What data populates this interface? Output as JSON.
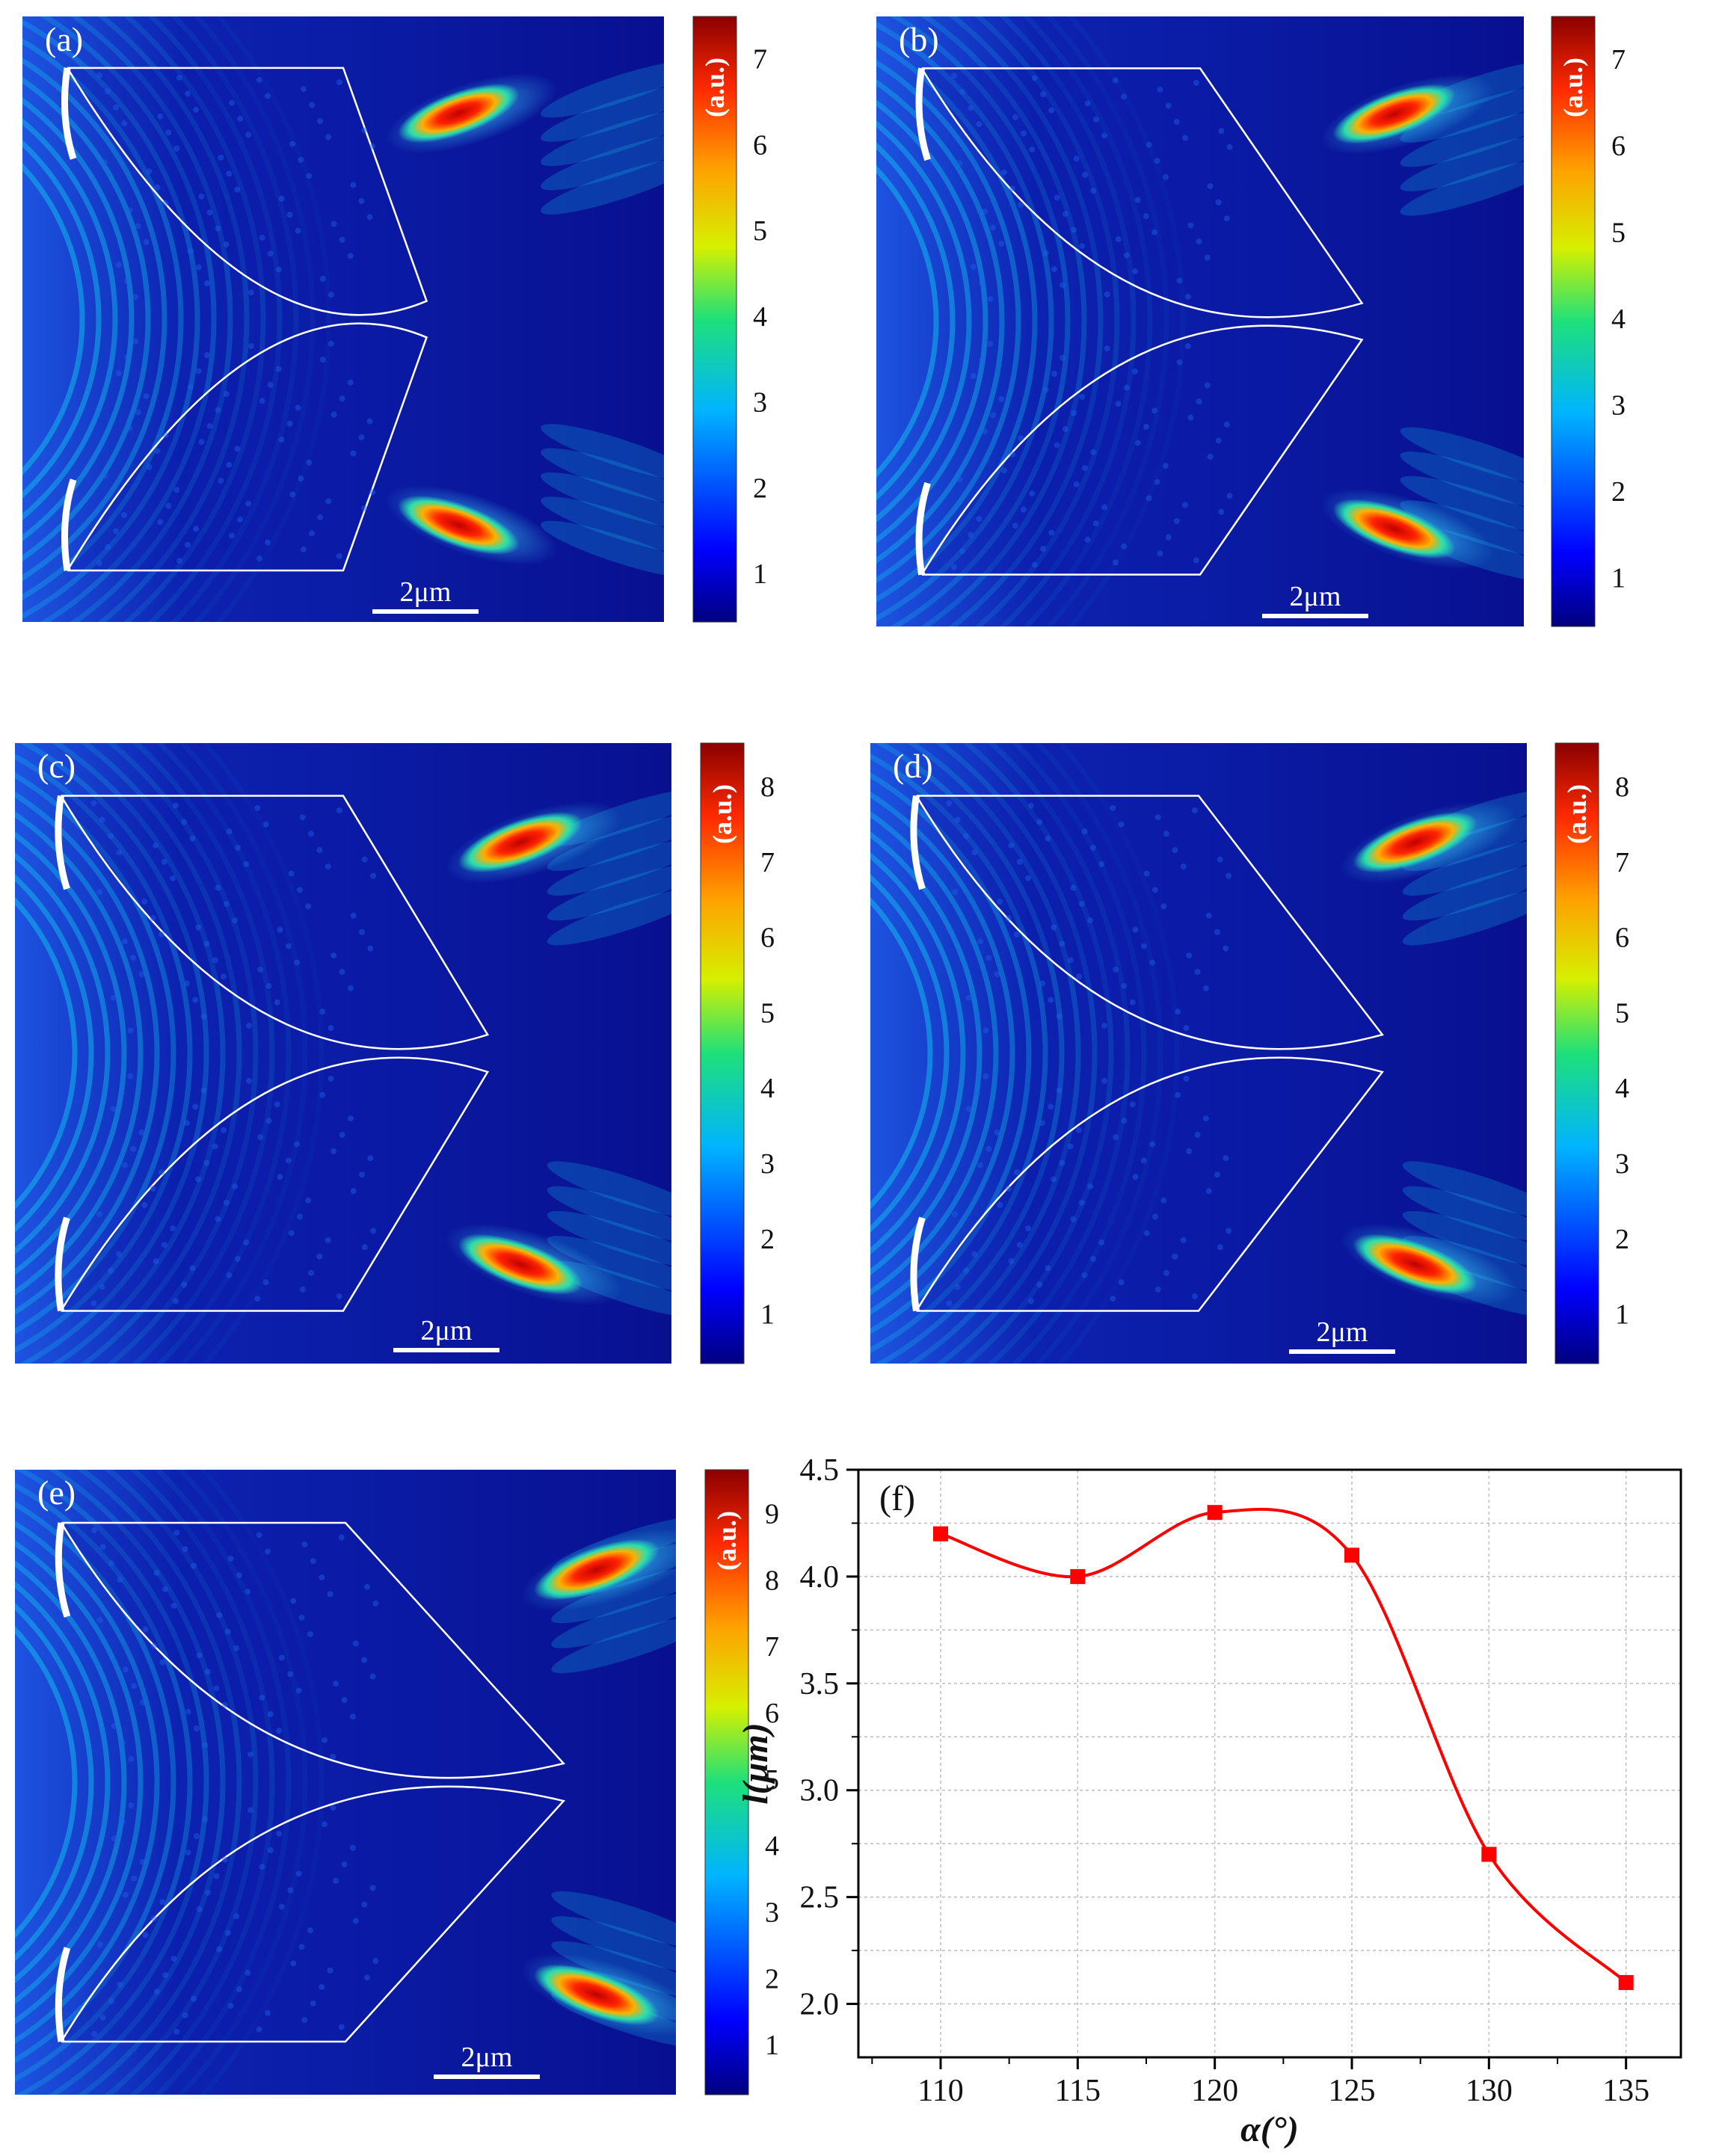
{
  "panels": [
    {
      "letter": "(a)",
      "scale_label": "2μm",
      "colorbar_unit": "(a.u.)",
      "colorbar_ticks": [
        "1",
        "2",
        "3",
        "4",
        "5",
        "6",
        "7"
      ]
    },
    {
      "letter": "(b)",
      "scale_label": "2μm",
      "colorbar_unit": "(a.u.)",
      "colorbar_ticks": [
        "1",
        "2",
        "3",
        "4",
        "5",
        "6",
        "7"
      ]
    },
    {
      "letter": "(c)",
      "scale_label": "2μm",
      "colorbar_unit": "(a.u.)",
      "colorbar_ticks": [
        "1",
        "2",
        "3",
        "4",
        "5",
        "6",
        "7",
        "8"
      ]
    },
    {
      "letter": "(d)",
      "scale_label": "2μm",
      "colorbar_unit": "(a.u.)",
      "colorbar_ticks": [
        "1",
        "2",
        "3",
        "4",
        "5",
        "6",
        "7",
        "8"
      ]
    },
    {
      "letter": "(e)",
      "scale_label": "2μm",
      "colorbar_unit": "(a.u.)",
      "colorbar_ticks": [
        "1",
        "2",
        "3",
        "4",
        "5",
        "6",
        "7",
        "8",
        "9"
      ]
    }
  ],
  "colors": {
    "field_background": "#0a0f8c",
    "field_mid": "#1f5fe8",
    "field_wave": "#12b8ef",
    "hotspot": "#e81f10",
    "lens_outline": "#ffffff",
    "curve": "#ff0000",
    "marker": "#ff0000",
    "grid": "#bdbdbd"
  },
  "chart_data": {
    "type": "line",
    "panel_label": "(f)",
    "xlabel": "α(°)",
    "ylabel": "l(μm)",
    "x": [
      110,
      115,
      120,
      125,
      130,
      135
    ],
    "series": [
      {
        "name": "l",
        "values": [
          4.2,
          4.0,
          4.3,
          4.1,
          2.7,
          2.1
        ]
      }
    ],
    "xlim": [
      107,
      137
    ],
    "ylim": [
      1.75,
      4.5
    ],
    "xticks": [
      110,
      115,
      120,
      125,
      130,
      135
    ],
    "yticks": [
      2.0,
      2.5,
      3.0,
      3.5,
      4.0,
      4.5
    ],
    "ytick_labels": [
      "2.0",
      "2.5",
      "3.0",
      "3.5",
      "4.0",
      "4.5"
    ],
    "grid": true
  }
}
